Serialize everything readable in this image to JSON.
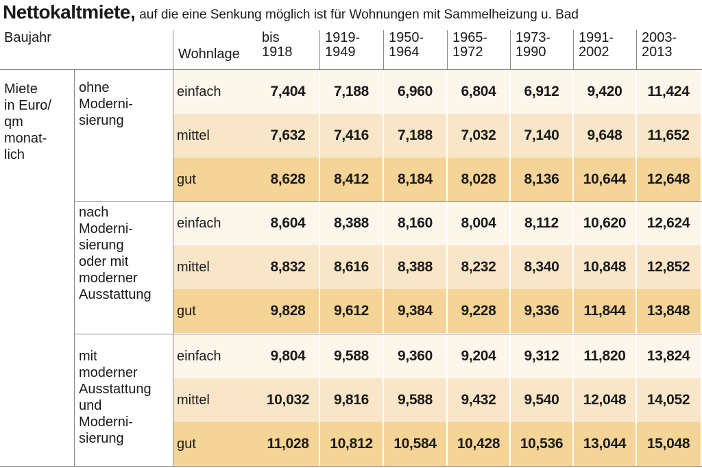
{
  "title": "Nettokaltmiete,",
  "subtitle": "auf die eine Senkung möglich ist für Wohnungen mit Sammelheizung u. Bad",
  "baujahr_label": "Baujahr",
  "wohnlage_label": "Wohnlage",
  "left_label": "Miete\nin Euro/\nqm\nmonat-\nlich",
  "colors": {
    "einfach": "#fdf6ea",
    "mittel": "#f9e6c8",
    "gut": "#f4d497"
  },
  "chart_data": {
    "type": "table",
    "columns": [
      "bis\n1918",
      "1919-\n1949",
      "1950-\n1964",
      "1965-\n1972",
      "1973-\n1990",
      "1991-\n2002",
      "2003-\n2013"
    ],
    "groups": [
      {
        "label": "ohne\nModerni-\nsierung",
        "rows": [
          {
            "wohnlage": "einfach",
            "values": [
              "7,404",
              "7,188",
              "6,960",
              "6,804",
              "6,912",
              "9,420",
              "11,424"
            ]
          },
          {
            "wohnlage": "mittel",
            "values": [
              "7,632",
              "7,416",
              "7,188",
              "7,032",
              "7,140",
              "9,648",
              "11,652"
            ]
          },
          {
            "wohnlage": "gut",
            "values": [
              "8,628",
              "8,412",
              "8,184",
              "8,028",
              "8,136",
              "10,644",
              "12,648"
            ]
          }
        ]
      },
      {
        "label": "nach\nModerni-\nsierung\noder mit\nmoderner\nAusstattung",
        "rows": [
          {
            "wohnlage": "einfach",
            "values": [
              "8,604",
              "8,388",
              "8,160",
              "8,004",
              "8,112",
              "10,620",
              "12,624"
            ]
          },
          {
            "wohnlage": "mittel",
            "values": [
              "8,832",
              "8,616",
              "8,388",
              "8,232",
              "8,340",
              "10,848",
              "12,852"
            ]
          },
          {
            "wohnlage": "gut",
            "values": [
              "9,828",
              "9,612",
              "9,384",
              "9,228",
              "9,336",
              "11,844",
              "13,848"
            ]
          }
        ]
      },
      {
        "label": "mit\nmoderner\nAusstattung\nund\nModerni-\nsierung",
        "rows": [
          {
            "wohnlage": "einfach",
            "values": [
              "9,804",
              "9,588",
              "9,360",
              "9,204",
              "9,312",
              "11,820",
              "13,824"
            ]
          },
          {
            "wohnlage": "mittel",
            "values": [
              "10,032",
              "9,816",
              "9,588",
              "9,432",
              "9,540",
              "12,048",
              "14,052"
            ]
          },
          {
            "wohnlage": "gut",
            "values": [
              "11,028",
              "10,812",
              "10,584",
              "10,428",
              "10,536",
              "13,044",
              "15,048"
            ]
          }
        ]
      }
    ]
  }
}
